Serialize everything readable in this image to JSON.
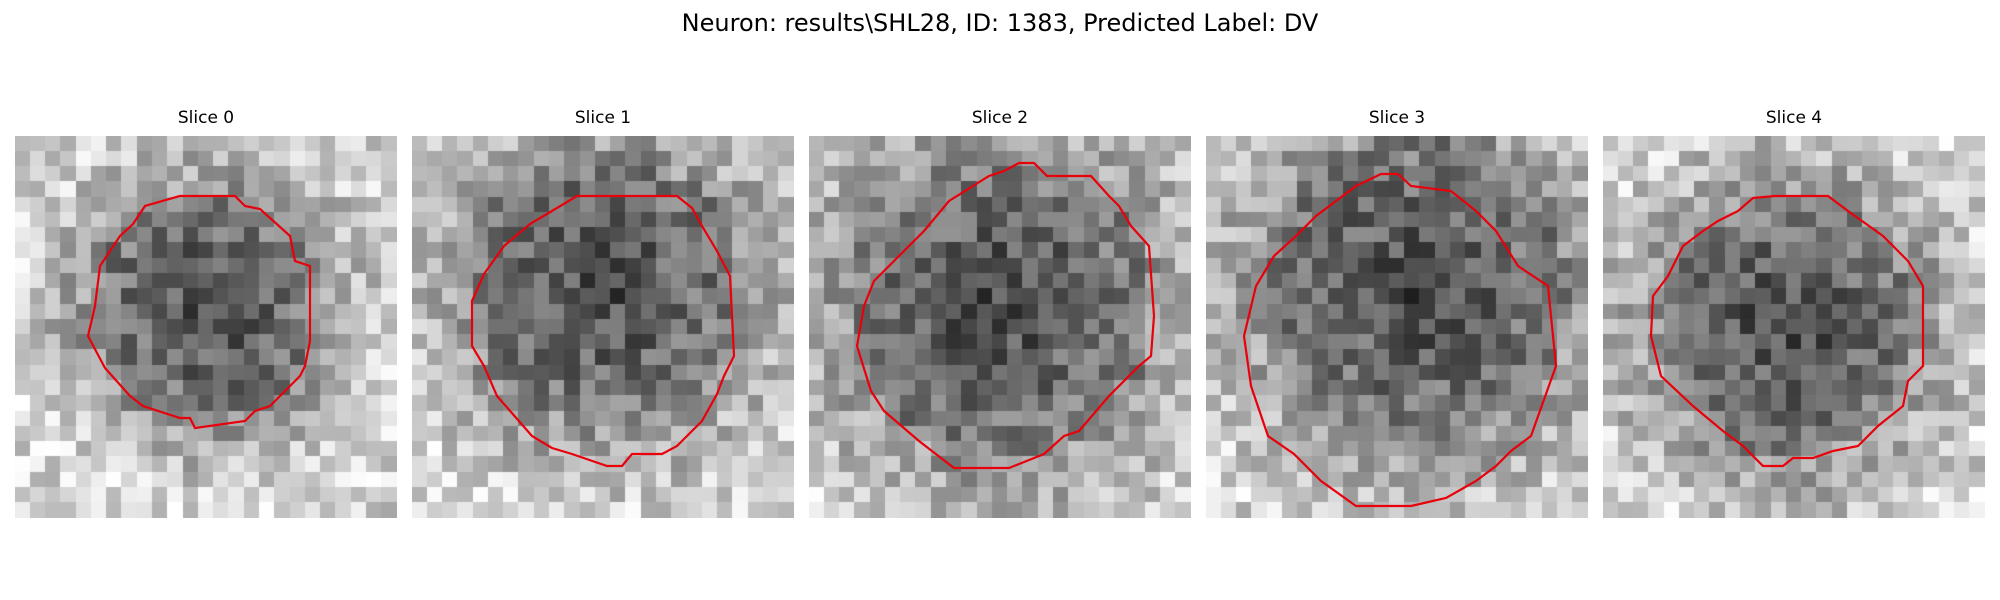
{
  "title": "Neuron: results\\SHL28, ID: 1383, Predicted Label: DV",
  "contour_color": "#e8000b",
  "slices": [
    {
      "label": "Slice 0",
      "seed": 11,
      "dark_center": [
        0.5,
        0.45
      ],
      "dark_radius": 0.3
    },
    {
      "label": "Slice 1",
      "seed": 27,
      "dark_center": [
        0.5,
        0.4
      ],
      "dark_radius": 0.36
    },
    {
      "label": "Slice 2",
      "seed": 43,
      "dark_center": [
        0.5,
        0.45
      ],
      "dark_radius": 0.4
    },
    {
      "label": "Slice 3",
      "seed": 59,
      "dark_center": [
        0.55,
        0.4
      ],
      "dark_radius": 0.4
    },
    {
      "label": "Slice 4",
      "seed": 71,
      "dark_center": [
        0.48,
        0.5
      ],
      "dark_radius": 0.34
    }
  ]
}
